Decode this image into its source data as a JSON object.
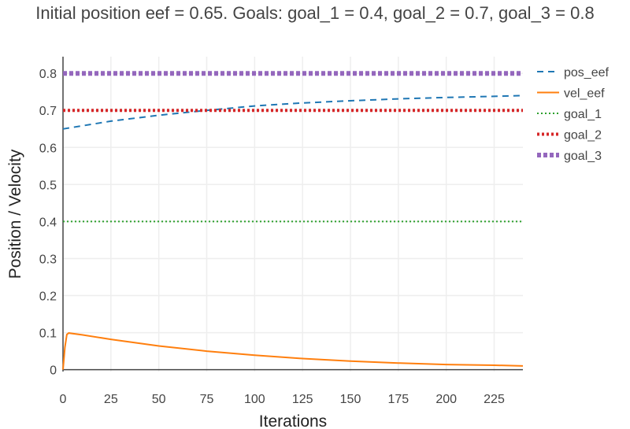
{
  "chart_data": {
    "type": "line",
    "title": "Initial position eef = 0.65. Goals: goal_1 = 0.4, goal_2 = 0.7, goal_3 = 0.8",
    "xlabel": "Iterations",
    "ylabel": "Position / Velocity",
    "xlim": [
      0,
      240
    ],
    "ylim": [
      -0.005,
      0.845
    ],
    "xticks": [
      0,
      25,
      50,
      75,
      100,
      125,
      150,
      175,
      200,
      225
    ],
    "yticks": [
      0,
      0.1,
      0.2,
      0.3,
      0.4,
      0.5,
      0.6,
      0.7,
      0.8
    ],
    "ytick_labels": [
      "0",
      "0.1",
      "0.2",
      "0.3",
      "0.4",
      "0.5",
      "0.6",
      "0.7",
      "0.8"
    ],
    "grid": true,
    "legend_position": "right",
    "series": [
      {
        "name": "pos_eef",
        "color": "#1f77b4",
        "style": "dash",
        "x": [
          0,
          25,
          50,
          75,
          100,
          125,
          150,
          175,
          200,
          225,
          240
        ],
        "y": [
          0.65,
          0.671,
          0.687,
          0.7,
          0.712,
          0.72,
          0.726,
          0.731,
          0.735,
          0.738,
          0.74
        ]
      },
      {
        "name": "vel_eef",
        "color": "#ff7f0e",
        "style": "solid",
        "x": [
          0,
          1,
          2,
          3,
          10,
          25,
          50,
          75,
          100,
          125,
          150,
          175,
          200,
          225,
          240
        ],
        "y": [
          0,
          0.06,
          0.095,
          0.099,
          0.094,
          0.082,
          0.064,
          0.05,
          0.039,
          0.03,
          0.023,
          0.018,
          0.014,
          0.012,
          0.01
        ]
      },
      {
        "name": "goal_1",
        "color": "#2ca02c",
        "style": "dot",
        "x": [
          0,
          240
        ],
        "y": [
          0.4,
          0.4
        ]
      },
      {
        "name": "goal_2",
        "color": "#d62728",
        "style": "dot-thick",
        "x": [
          0,
          240
        ],
        "y": [
          0.7,
          0.7
        ]
      },
      {
        "name": "goal_3",
        "color": "#9467bd",
        "style": "dot-thicker",
        "x": [
          0,
          240
        ],
        "y": [
          0.8,
          0.8
        ]
      }
    ]
  }
}
